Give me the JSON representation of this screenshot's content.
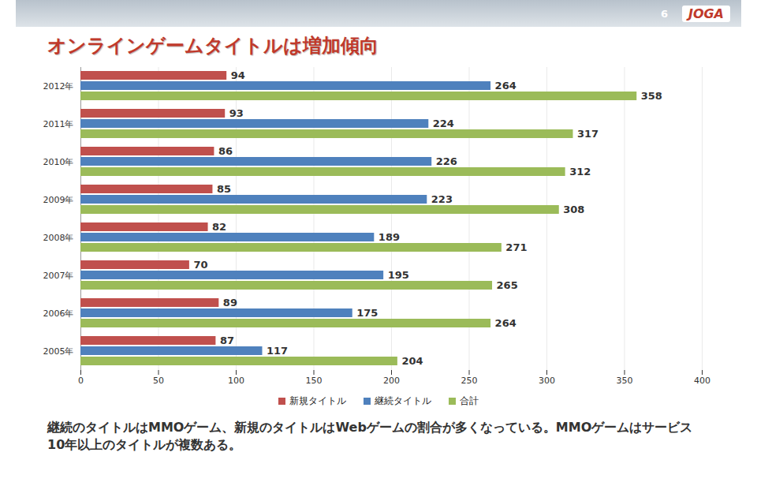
{
  "chart_data": {
    "type": "bar",
    "orientation": "horizontal",
    "title": "オンラインゲームタイトルは増加傾向",
    "page_number": "6",
    "logo": "JOGA",
    "caption": "継続のタイトルはMMOゲーム、新規のタイトルはWebゲームの割合が多くなっている。MMOゲームはサービス10年以上のタイトルが複数ある。",
    "categories": [
      "2012年",
      "2011年",
      "2010年",
      "2009年",
      "2008年",
      "2007年",
      "2006年",
      "2005年"
    ],
    "series": [
      {
        "name": "新規タイトル",
        "color": "#c0504d",
        "values": [
          94,
          93,
          86,
          85,
          82,
          70,
          89,
          87
        ]
      },
      {
        "name": "継続タイトル",
        "color": "#4f81bd",
        "values": [
          264,
          224,
          226,
          223,
          189,
          195,
          175,
          117
        ]
      },
      {
        "name": "合計",
        "color": "#9bbb59",
        "values": [
          358,
          317,
          312,
          308,
          271,
          265,
          264,
          204
        ]
      }
    ],
    "xlim": [
      0,
      400
    ],
    "xticks": [
      0,
      50,
      100,
      150,
      200,
      250,
      300,
      350,
      400
    ],
    "grid": true,
    "data_labels": true,
    "legend": "bottom"
  }
}
